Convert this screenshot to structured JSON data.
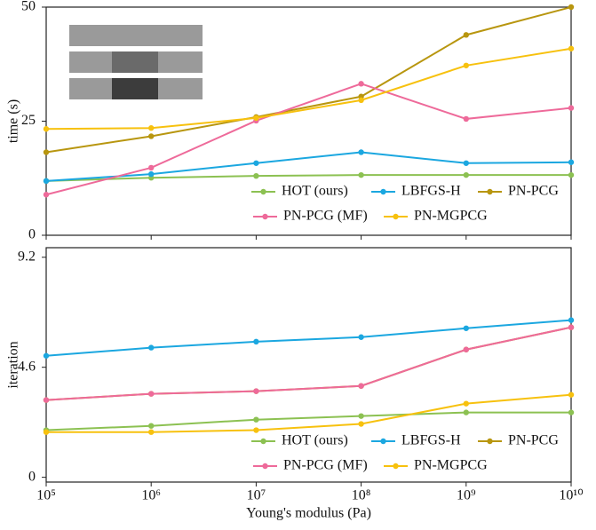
{
  "chart_data": [
    {
      "type": "line",
      "ylabel": "time (s)",
      "x": [
        100000,
        1000000,
        10000000,
        100000000,
        1000000000,
        10000000000
      ],
      "xlim": [
        100000,
        10000000000
      ],
      "log_x": true,
      "xticks": [
        100000,
        1000000,
        10000000,
        100000000,
        1000000000,
        10000000000
      ],
      "ylim": [
        0,
        50
      ],
      "yticks": [
        0,
        25,
        50
      ],
      "series": [
        {
          "name": "HOT (ours)",
          "color": "#8cc152",
          "values": [
            11.9,
            12.6,
            13.0,
            13.2,
            13.2,
            13.2
          ]
        },
        {
          "name": "LBFGS-H",
          "color": "#1ba7e0",
          "values": [
            11.9,
            13.4,
            15.8,
            18.2,
            15.8,
            16.0
          ]
        },
        {
          "name": "PN-PCG",
          "color": "#b8960f",
          "values": [
            18.2,
            21.7,
            25.9,
            30.4,
            43.9,
            50.0
          ]
        },
        {
          "name": "PN-PCG (MF)",
          "color": "#ee6a9a",
          "values": [
            8.9,
            14.8,
            25.1,
            33.2,
            25.5,
            27.9
          ]
        },
        {
          "name": "PN-MGPCG",
          "color": "#f7c10e",
          "values": [
            23.3,
            23.5,
            25.7,
            29.6,
            37.2,
            40.9
          ]
        }
      ]
    },
    {
      "type": "line",
      "ylabel": "iteration",
      "xlabel": "Young's modulus (Pa)",
      "x": [
        100000,
        1000000,
        10000000,
        100000000,
        1000000000,
        10000000000
      ],
      "xlim": [
        100000,
        10000000000
      ],
      "log_x": true,
      "xticks": [
        {
          "value": 100000,
          "label": "10⁵"
        },
        {
          "value": 1000000,
          "label": "10⁶"
        },
        {
          "value": 10000000,
          "label": "10⁷"
        },
        {
          "value": 100000000,
          "label": "10⁸"
        },
        {
          "value": 1000000000,
          "label": "10⁹"
        },
        {
          "value": 10000000000,
          "label": "10¹⁰"
        }
      ],
      "ylim": [
        -0.2,
        9.6
      ],
      "yticks": [
        0,
        4.6,
        9.2
      ],
      "series": [
        {
          "name": "HOT (ours)",
          "color": "#8cc152",
          "values": [
            1.97,
            2.15,
            2.41,
            2.56,
            2.71,
            2.71
          ]
        },
        {
          "name": "LBFGS-H",
          "color": "#1ba7e0",
          "values": [
            5.08,
            5.42,
            5.67,
            5.86,
            6.23,
            6.57
          ]
        },
        {
          "name": "PN-PCG",
          "color": "#b8960f",
          "values": [
            3.23,
            3.49,
            3.6,
            3.82,
            5.34,
            6.27
          ]
        },
        {
          "name": "PN-PCG (MF)",
          "color": "#ee6a9a",
          "values": [
            3.23,
            3.49,
            3.6,
            3.82,
            5.34,
            6.27
          ]
        },
        {
          "name": "PN-MGPCG",
          "color": "#f7c10e",
          "values": [
            1.89,
            1.89,
            1.97,
            2.23,
            3.08,
            3.45
          ]
        }
      ]
    }
  ]
}
